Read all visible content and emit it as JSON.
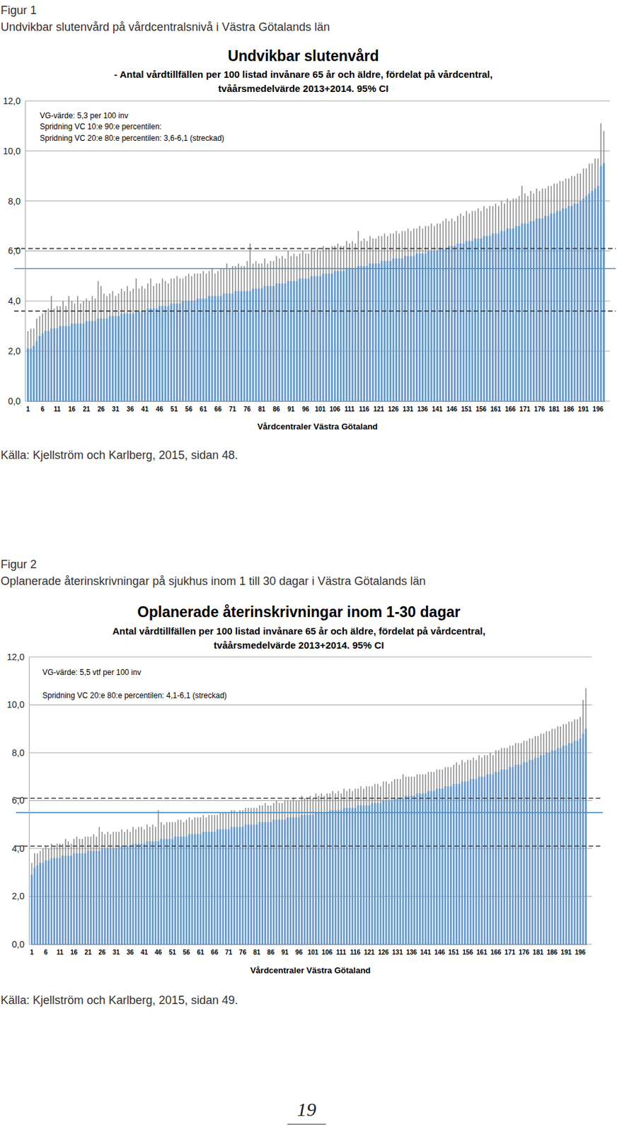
{
  "figures": [
    {
      "label": "Figur 1",
      "caption": "Undvikbar slutenvård på vårdcentralsnivå i Västra Götalands län",
      "source": "Källa: Kjellström och Karlberg, 2015, sidan 48."
    },
    {
      "label": "Figur 2",
      "caption": "Oplanerade återinskrivningar på sjukhus inom 1 till 30 dagar i Västra Götalands län",
      "source": "Källa: Kjellström och Karlberg, 2015, sidan 49."
    }
  ],
  "page_number": "19",
  "chart_data": [
    {
      "type": "bar",
      "title": "Undvikbar slutenvård",
      "subtitle": [
        "- Antal vårdtillfällen per 100 listad invånare 65 år och äldre, fördelat på vårdcentral,",
        "tvåårsmedelvärde 2013+2014. 95% CI"
      ],
      "annotations": [
        "VG-värde: 5,3 per 100 inv",
        "Spridning VC 10:e 90:e percentilen:",
        "Spridning VC 20:e 80:e percentilen: 3,6-6,1 (streckad)"
      ],
      "x_label": "Vårdcentraler Västra Götaland",
      "color": "#6699cc",
      "grid": true,
      "ylim": [
        0,
        12
      ],
      "yticks": [
        {
          "value": 0,
          "label": "0,0"
        },
        {
          "value": 2,
          "label": "2,0"
        },
        {
          "value": 4,
          "label": "4,0"
        },
        {
          "value": 6,
          "label": "6,0"
        },
        {
          "value": 8,
          "label": "8,0"
        },
        {
          "value": 10,
          "label": "10,0"
        },
        {
          "value": 12,
          "label": "12,0"
        }
      ],
      "reference_lines": [
        {
          "value": 5.3,
          "color": "#4f8fc6",
          "line_style": "solid"
        },
        {
          "value": 3.6,
          "color": "#404040",
          "line_style": "dashed"
        },
        {
          "value": 6.1,
          "color": "#404040",
          "line_style": "dashed"
        }
      ],
      "categories": [
        "1",
        null,
        null,
        null,
        null,
        "6",
        null,
        null,
        null,
        null,
        "11",
        null,
        null,
        null,
        null,
        "16",
        null,
        null,
        null,
        null,
        "21",
        null,
        null,
        null,
        null,
        "26",
        null,
        null,
        null,
        null,
        "31",
        null,
        null,
        null,
        null,
        "36",
        null,
        null,
        null,
        null,
        "41",
        null,
        null,
        null,
        null,
        "46",
        null,
        null,
        null,
        null,
        "51",
        null,
        null,
        null,
        null,
        "56",
        null,
        null,
        null,
        null,
        "61",
        null,
        null,
        null,
        null,
        "66",
        null,
        null,
        null,
        null,
        "71",
        null,
        null,
        null,
        null,
        "76",
        null,
        null,
        null,
        null,
        "81",
        null,
        null,
        null,
        null,
        "86",
        null,
        null,
        null,
        null,
        "91",
        null,
        null,
        null,
        null,
        "96",
        null,
        null,
        null,
        null,
        "101",
        null,
        null,
        null,
        null,
        "106",
        null,
        null,
        null,
        null,
        "111",
        null,
        null,
        null,
        null,
        "116",
        null,
        null,
        null,
        null,
        "121",
        null,
        null,
        null,
        null,
        "126",
        null,
        null,
        null,
        null,
        "131",
        null,
        null,
        null,
        null,
        "136",
        null,
        null,
        null,
        null,
        "141",
        null,
        null,
        null,
        null,
        "146",
        null,
        null,
        null,
        null,
        "151",
        null,
        null,
        null,
        null,
        "156",
        null,
        null,
        null,
        null,
        "161",
        null,
        null,
        null,
        null,
        "166",
        null,
        null,
        null,
        null,
        "171",
        null,
        null,
        null,
        null,
        "176",
        null,
        null,
        null,
        null,
        "181",
        null,
        null,
        null,
        null,
        "186",
        null,
        null,
        null,
        null,
        "191",
        null,
        null,
        null,
        null,
        "196",
        null,
        null
      ],
      "values": [
        2.1,
        2.1,
        2.2,
        2.4,
        2.6,
        2.7,
        2.8,
        2.8,
        2.9,
        2.9,
        2.9,
        3.0,
        3.0,
        3.0,
        3.0,
        3.1,
        3.1,
        3.1,
        3.1,
        3.1,
        3.2,
        3.2,
        3.2,
        3.2,
        3.3,
        3.3,
        3.3,
        3.3,
        3.4,
        3.4,
        3.4,
        3.4,
        3.5,
        3.5,
        3.5,
        3.5,
        3.5,
        3.6,
        3.6,
        3.6,
        3.6,
        3.7,
        3.7,
        3.7,
        3.7,
        3.8,
        3.8,
        3.8,
        3.8,
        3.9,
        3.9,
        3.9,
        3.9,
        4.0,
        4.0,
        4.0,
        4.0,
        4.0,
        4.1,
        4.1,
        4.1,
        4.1,
        4.2,
        4.2,
        4.2,
        4.2,
        4.2,
        4.3,
        4.3,
        4.3,
        4.3,
        4.4,
        4.4,
        4.4,
        4.4,
        4.4,
        4.4,
        4.5,
        4.5,
        4.5,
        4.5,
        4.6,
        4.6,
        4.6,
        4.6,
        4.7,
        4.7,
        4.7,
        4.7,
        4.8,
        4.8,
        4.8,
        4.8,
        4.9,
        4.9,
        4.9,
        4.9,
        5.0,
        5.0,
        5.0,
        5.0,
        5.1,
        5.1,
        5.1,
        5.1,
        5.2,
        5.2,
        5.2,
        5.2,
        5.3,
        5.3,
        5.3,
        5.3,
        5.4,
        5.4,
        5.4,
        5.4,
        5.5,
        5.5,
        5.5,
        5.5,
        5.6,
        5.6,
        5.6,
        5.6,
        5.7,
        5.7,
        5.7,
        5.7,
        5.8,
        5.8,
        5.8,
        5.8,
        5.9,
        5.9,
        5.9,
        5.9,
        6.0,
        6.0,
        6.0,
        6.0,
        6.1,
        6.1,
        6.1,
        6.2,
        6.2,
        6.2,
        6.3,
        6.3,
        6.3,
        6.4,
        6.4,
        6.4,
        6.5,
        6.5,
        6.5,
        6.6,
        6.6,
        6.6,
        6.7,
        6.7,
        6.7,
        6.8,
        6.8,
        6.9,
        6.9,
        6.9,
        7.0,
        7.0,
        7.1,
        7.1,
        7.1,
        7.2,
        7.2,
        7.3,
        7.3,
        7.3,
        7.4,
        7.4,
        7.5,
        7.5,
        7.6,
        7.6,
        7.7,
        7.7,
        7.8,
        7.8,
        7.9,
        7.9,
        8.0,
        8.1,
        8.2,
        8.3,
        8.4,
        8.5,
        8.6,
        9.4,
        9.5
      ],
      "errors": [
        0.7,
        0.8,
        0.7,
        0.9,
        0.8,
        0.8,
        0.8,
        0.9,
        1.3,
        0.8,
        0.9,
        0.8,
        1.0,
        0.8,
        1.2,
        0.9,
        0.8,
        1.1,
        0.8,
        0.9,
        0.9,
        0.8,
        1.0,
        0.9,
        1.5,
        1.3,
        1.0,
        0.9,
        0.9,
        1.0,
        0.8,
        0.9,
        1.0,
        0.9,
        1.1,
        0.9,
        1.0,
        1.3,
        0.9,
        1.0,
        0.9,
        1.0,
        1.2,
        0.9,
        1.0,
        0.9,
        1.1,
        1.0,
        0.9,
        1.0,
        1.0,
        1.1,
        1.0,
        0.9,
        1.0,
        1.1,
        1.0,
        1.1,
        1.0,
        1.0,
        1.1,
        1.0,
        1.0,
        1.1,
        0.9,
        1.0,
        1.1,
        1.0,
        1.2,
        1.0,
        1.1,
        1.0,
        1.1,
        1.0,
        1.0,
        1.2,
        1.9,
        1.0,
        1.1,
        1.0,
        1.0,
        1.1,
        0.9,
        1.0,
        1.0,
        1.1,
        1.0,
        1.1,
        1.0,
        1.2,
        1.0,
        1.1,
        1.0,
        1.0,
        1.1,
        1.0,
        1.0,
        1.1,
        1.0,
        1.1,
        1.0,
        1.1,
        1.0,
        1.0,
        1.1,
        1.0,
        1.1,
        1.0,
        1.0,
        1.1,
        1.0,
        1.1,
        1.0,
        1.4,
        1.0,
        1.1,
        1.0,
        1.1,
        1.0,
        1.0,
        1.1,
        1.0,
        1.1,
        1.0,
        1.1,
        1.0,
        1.1,
        1.0,
        1.1,
        1.0,
        1.1,
        1.0,
        1.1,
        1.0,
        1.1,
        1.0,
        1.1,
        1.0,
        1.1,
        1.0,
        1.1,
        1.0,
        1.1,
        1.2,
        1.0,
        1.1,
        1.0,
        1.1,
        1.2,
        1.1,
        1.2,
        1.1,
        1.2,
        1.1,
        1.2,
        1.1,
        1.2,
        1.1,
        1.2,
        1.1,
        1.2,
        1.1,
        1.2,
        1.1,
        1.2,
        1.1,
        1.2,
        1.1,
        1.2,
        1.5,
        1.2,
        1.1,
        1.2,
        1.1,
        1.2,
        1.1,
        1.2,
        1.1,
        1.2,
        1.1,
        1.2,
        1.1,
        1.2,
        1.1,
        1.2,
        1.1,
        1.2,
        1.1,
        1.2,
        1.1,
        1.2,
        1.1,
        1.2,
        1.1,
        1.2,
        1.1,
        1.7,
        1.3
      ]
    },
    {
      "type": "bar",
      "title": "Oplanerade återinskrivningar inom 1-30 dagar",
      "subtitle": [
        "Antal vårdtillfällen per 100 listad invånare 65 år och äldre, fördelat på vårdcentral,",
        "tvåårsmedelvärde 2013+2014. 95% CI"
      ],
      "annotations": [
        "VG-värde: 5,5 vtf per 100 inv",
        "Spridning VC 20:e 80:e percentilen: 4,1-6,1 (streckad)"
      ],
      "x_label": "Vårdcentraler Västra Götaland",
      "color": "#6699cc",
      "grid": true,
      "ylim": [
        0,
        12
      ],
      "yticks": [
        {
          "value": 0,
          "label": "0,0"
        },
        {
          "value": 2,
          "label": "2,0"
        },
        {
          "value": 4,
          "label": "4,0"
        },
        {
          "value": 6,
          "label": "6,0"
        },
        {
          "value": 8,
          "label": "8,0"
        },
        {
          "value": 10,
          "label": "10,0"
        },
        {
          "value": 12,
          "label": "12,0"
        }
      ],
      "reference_lines": [
        {
          "value": 5.5,
          "color": "#4f8fc6",
          "line_style": "solid"
        },
        {
          "value": 4.1,
          "color": "#404040",
          "line_style": "dashed"
        },
        {
          "value": 6.1,
          "color": "#404040",
          "line_style": "dashed"
        }
      ],
      "categories": [
        "1",
        null,
        null,
        null,
        null,
        "6",
        null,
        null,
        null,
        null,
        "11",
        null,
        null,
        null,
        null,
        "16",
        null,
        null,
        null,
        null,
        "21",
        null,
        null,
        null,
        null,
        "26",
        null,
        null,
        null,
        null,
        "31",
        null,
        null,
        null,
        null,
        "36",
        null,
        null,
        null,
        null,
        "41",
        null,
        null,
        null,
        null,
        "46",
        null,
        null,
        null,
        null,
        "51",
        null,
        null,
        null,
        null,
        "56",
        null,
        null,
        null,
        null,
        "61",
        null,
        null,
        null,
        null,
        "66",
        null,
        null,
        null,
        null,
        "71",
        null,
        null,
        null,
        null,
        "76",
        null,
        null,
        null,
        null,
        "81",
        null,
        null,
        null,
        null,
        "86",
        null,
        null,
        null,
        null,
        "91",
        null,
        null,
        null,
        null,
        "96",
        null,
        null,
        null,
        null,
        "101",
        null,
        null,
        null,
        null,
        "106",
        null,
        null,
        null,
        null,
        "111",
        null,
        null,
        null,
        null,
        "116",
        null,
        null,
        null,
        null,
        "121",
        null,
        null,
        null,
        null,
        "126",
        null,
        null,
        null,
        null,
        "131",
        null,
        null,
        null,
        null,
        "136",
        null,
        null,
        null,
        null,
        "141",
        null,
        null,
        null,
        null,
        "146",
        null,
        null,
        null,
        null,
        "151",
        null,
        null,
        null,
        null,
        "156",
        null,
        null,
        null,
        null,
        "161",
        null,
        null,
        null,
        null,
        "166",
        null,
        null,
        null,
        null,
        "171",
        null,
        null,
        null,
        null,
        "176",
        null,
        null,
        null,
        null,
        "181",
        null,
        null,
        null,
        null,
        "186",
        null,
        null,
        null,
        null,
        "191",
        null,
        null,
        null,
        null,
        "196",
        null,
        null
      ],
      "values": [
        2.9,
        3.2,
        3.3,
        3.4,
        3.4,
        3.5,
        3.5,
        3.6,
        3.6,
        3.6,
        3.6,
        3.7,
        3.7,
        3.7,
        3.7,
        3.8,
        3.8,
        3.8,
        3.8,
        3.8,
        3.9,
        3.9,
        3.9,
        3.9,
        3.9,
        4.0,
        4.0,
        4.0,
        4.0,
        4.0,
        4.0,
        4.1,
        4.1,
        4.1,
        4.1,
        4.1,
        4.2,
        4.2,
        4.2,
        4.2,
        4.2,
        4.3,
        4.3,
        4.3,
        4.3,
        4.3,
        4.4,
        4.4,
        4.4,
        4.4,
        4.4,
        4.5,
        4.5,
        4.5,
        4.5,
        4.5,
        4.6,
        4.6,
        4.6,
        4.6,
        4.6,
        4.7,
        4.7,
        4.7,
        4.7,
        4.7,
        4.8,
        4.8,
        4.8,
        4.8,
        4.8,
        4.9,
        4.9,
        4.9,
        4.9,
        4.9,
        5.0,
        5.0,
        5.0,
        5.0,
        5.0,
        5.1,
        5.1,
        5.1,
        5.1,
        5.1,
        5.2,
        5.2,
        5.2,
        5.2,
        5.2,
        5.3,
        5.3,
        5.3,
        5.3,
        5.3,
        5.4,
        5.4,
        5.4,
        5.4,
        5.4,
        5.5,
        5.5,
        5.5,
        5.5,
        5.5,
        5.6,
        5.6,
        5.6,
        5.6,
        5.6,
        5.7,
        5.7,
        5.7,
        5.7,
        5.7,
        5.8,
        5.8,
        5.8,
        5.8,
        5.8,
        5.9,
        5.9,
        5.9,
        5.9,
        6.0,
        6.0,
        6.0,
        6.0,
        6.1,
        6.1,
        6.1,
        6.1,
        6.2,
        6.2,
        6.2,
        6.2,
        6.3,
        6.3,
        6.3,
        6.3,
        6.4,
        6.4,
        6.4,
        6.5,
        6.5,
        6.5,
        6.6,
        6.6,
        6.6,
        6.7,
        6.7,
        6.7,
        6.8,
        6.8,
        6.8,
        6.9,
        6.9,
        6.9,
        7.0,
        7.0,
        7.0,
        7.1,
        7.1,
        7.1,
        7.2,
        7.2,
        7.3,
        7.3,
        7.3,
        7.4,
        7.4,
        7.5,
        7.5,
        7.5,
        7.6,
        7.6,
        7.7,
        7.7,
        7.8,
        7.8,
        7.9,
        7.9,
        8.0,
        8.0,
        8.1,
        8.1,
        8.2,
        8.2,
        8.3,
        8.3,
        8.4,
        8.4,
        8.5,
        8.5,
        8.6,
        8.8,
        9.0
      ],
      "errors": [
        0.5,
        0.6,
        0.5,
        0.5,
        0.6,
        0.6,
        0.5,
        0.6,
        0.5,
        0.6,
        0.6,
        0.5,
        0.7,
        0.6,
        0.5,
        0.6,
        0.7,
        0.6,
        0.6,
        0.7,
        0.6,
        0.6,
        0.7,
        0.6,
        1.0,
        0.7,
        0.6,
        0.7,
        0.6,
        0.7,
        0.7,
        0.6,
        0.7,
        0.6,
        0.7,
        0.6,
        0.7,
        0.6,
        0.7,
        0.7,
        0.6,
        0.7,
        0.6,
        0.7,
        0.6,
        1.3,
        0.7,
        0.6,
        0.7,
        0.7,
        0.7,
        0.6,
        0.7,
        0.7,
        0.6,
        0.7,
        0.7,
        0.6,
        0.7,
        0.7,
        0.7,
        0.7,
        0.6,
        0.7,
        0.7,
        0.7,
        0.6,
        0.7,
        0.7,
        0.7,
        0.7,
        0.7,
        0.7,
        0.6,
        0.7,
        0.7,
        0.7,
        0.7,
        0.7,
        0.7,
        0.7,
        0.7,
        0.7,
        0.8,
        0.7,
        0.7,
        0.7,
        0.8,
        0.7,
        0.7,
        0.8,
        0.7,
        0.7,
        0.8,
        0.7,
        0.7,
        0.8,
        0.7,
        0.7,
        0.8,
        0.7,
        0.8,
        0.7,
        0.8,
        0.7,
        0.8,
        0.7,
        0.8,
        0.7,
        0.8,
        0.7,
        0.8,
        0.7,
        0.8,
        0.7,
        0.8,
        0.7,
        0.8,
        0.7,
        0.8,
        0.8,
        0.7,
        0.8,
        0.8,
        0.7,
        0.8,
        0.8,
        0.7,
        0.8,
        0.8,
        0.8,
        0.8,
        1.0,
        0.8,
        0.8,
        0.8,
        0.8,
        0.8,
        0.8,
        0.8,
        0.8,
        0.8,
        0.8,
        0.8,
        0.8,
        0.8,
        0.8,
        0.8,
        0.8,
        0.8,
        0.8,
        0.9,
        0.8,
        0.9,
        0.8,
        0.9,
        0.8,
        0.9,
        0.8,
        0.9,
        0.8,
        0.9,
        0.8,
        0.9,
        0.8,
        0.9,
        0.9,
        0.9,
        0.9,
        0.9,
        0.9,
        0.9,
        0.9,
        0.9,
        0.9,
        0.9,
        0.9,
        0.9,
        0.9,
        0.9,
        0.9,
        0.9,
        0.9,
        0.9,
        0.9,
        0.9,
        0.9,
        0.9,
        0.9,
        0.9,
        0.9,
        0.9,
        0.9,
        0.9,
        0.9,
        0.9,
        1.4,
        1.7
      ]
    }
  ]
}
